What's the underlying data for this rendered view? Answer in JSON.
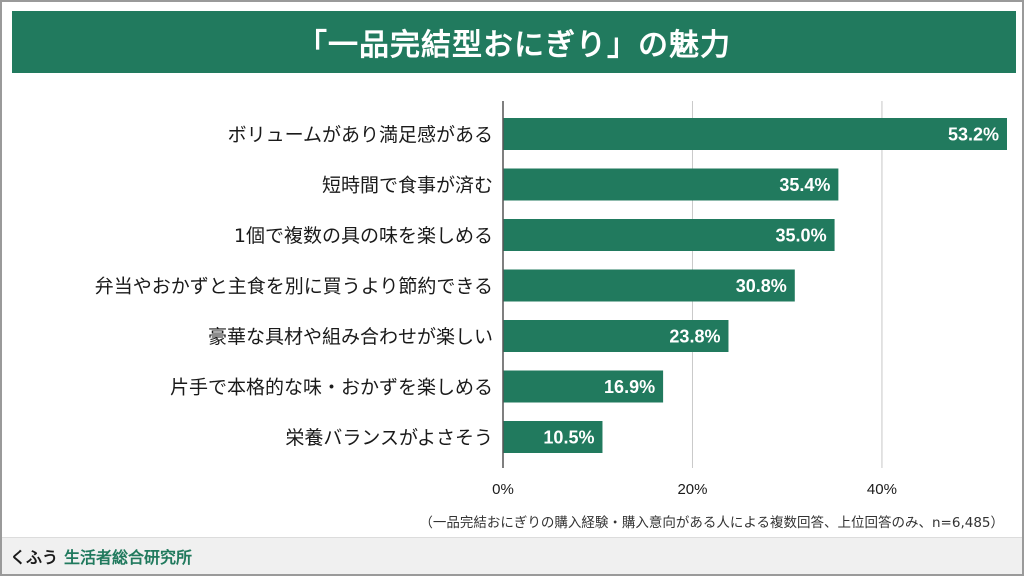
{
  "title": "「一品完結型おにぎり」の魅力",
  "footnote": "（一品完結おにぎりの購入経験・購入意向がある人による複数回答、上位回答のみ、n=6,485）",
  "footer": {
    "brand": "くふう",
    "institute": "生活者総合研究所"
  },
  "colors": {
    "bar": "#217a5e",
    "grid": "#c8c8c8"
  },
  "chart_data": {
    "type": "bar",
    "orientation": "horizontal",
    "categories": [
      "ボリュームがあり満足感がある",
      "短時間で食事が済む",
      "1個で複数の具の味を楽しめる",
      "弁当やおかずと主食を別に買うより節約できる",
      "豪華な具材や組み合わせが楽しい",
      "片手で本格的な味・おかずを楽しめる",
      "栄養バランスがよさそう"
    ],
    "values": [
      53.2,
      35.4,
      35.0,
      30.8,
      23.8,
      16.9,
      10.5
    ],
    "value_labels": [
      "53.2%",
      "35.4%",
      "35.0%",
      "30.8%",
      "23.8%",
      "16.9%",
      "10.5%"
    ],
    "xlim": [
      0,
      53.2
    ],
    "xticks": [
      0,
      20,
      40
    ],
    "xtick_labels": [
      "0%",
      "20%",
      "40%"
    ],
    "grid": true
  }
}
